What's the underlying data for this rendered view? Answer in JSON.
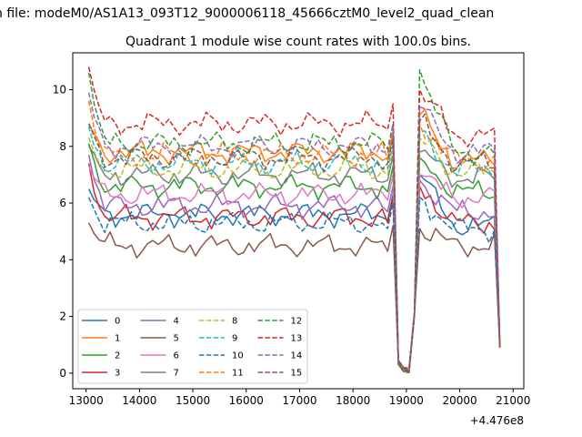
{
  "chart_data": {
    "type": "line",
    "suptitle": "n file: modeM0/AS1A13_093T12_9000006118_45666cztM0_level2_quad_clean",
    "title": "Quadrant 1 module wise count rates with 100.0s bins.",
    "xlabel": "",
    "ylabel": "",
    "x_offset_label": "+4.476e8",
    "xlim": [
      12750,
      21200
    ],
    "ylim": [
      -0.55,
      11.3
    ],
    "x_ticks": [
      13000,
      14000,
      15000,
      16000,
      17000,
      18000,
      19000,
      20000,
      21000
    ],
    "x_tick_labels": [
      "13000",
      "14000",
      "15000",
      "16000",
      "17000",
      "18000",
      "19000",
      "20000",
      "21000"
    ],
    "y_ticks": [
      0,
      2,
      4,
      6,
      8,
      10
    ],
    "y_tick_labels": [
      "0",
      "2",
      "4",
      "6",
      "8",
      "10"
    ],
    "legend_location": "lower-left",
    "legend_columns": 4,
    "grid": false,
    "series": [
      {
        "name": "0",
        "color": "#1f77b4",
        "dash": "solid",
        "base": 5.6,
        "start": 6.5,
        "peak": 7.0,
        "end": 5.2
      },
      {
        "name": "1",
        "color": "#ff7f0e",
        "dash": "solid",
        "base": 7.8,
        "start": 8.8,
        "peak": 9.1,
        "end": 7.5
      },
      {
        "name": "2",
        "color": "#2ca02c",
        "dash": "solid",
        "base": 6.6,
        "start": 8.1,
        "peak": 7.6,
        "end": 6.4
      },
      {
        "name": "3",
        "color": "#d62728",
        "dash": "solid",
        "base": 5.5,
        "start": 7.4,
        "peak": 6.6,
        "end": 5.3
      },
      {
        "name": "4",
        "color": "#9467bd",
        "dash": "solid",
        "base": 5.9,
        "start": 7.7,
        "peak": 6.8,
        "end": 5.7
      },
      {
        "name": "5",
        "color": "#8c564b",
        "dash": "solid",
        "base": 4.5,
        "start": 5.3,
        "peak": 5.1,
        "end": 4.5
      },
      {
        "name": "6",
        "color": "#e377c2",
        "dash": "solid",
        "base": 6.3,
        "start": 7.3,
        "peak": 7.0,
        "end": 6.2
      },
      {
        "name": "7",
        "color": "#7f7f7f",
        "dash": "solid",
        "base": 7.0,
        "start": 8.0,
        "peak": 7.8,
        "end": 6.9
      },
      {
        "name": "8",
        "color": "#bcbd22",
        "dash": "dashed",
        "base": 7.2,
        "start": 8.3,
        "peak": 8.3,
        "end": 7.1
      },
      {
        "name": "9",
        "color": "#17becf",
        "dash": "dashed",
        "base": 7.4,
        "start": 8.7,
        "peak": 8.5,
        "end": 7.2
      },
      {
        "name": "10",
        "color": "#1f77b4",
        "dash": "dashed",
        "base": 5.3,
        "start": 6.2,
        "peak": 6.2,
        "end": 5.1
      },
      {
        "name": "11",
        "color": "#ff7f0e",
        "dash": "dashed",
        "base": 7.7,
        "start": 9.6,
        "peak": 8.8,
        "end": 7.5
      },
      {
        "name": "12",
        "color": "#2ca02c",
        "dash": "dashed",
        "base": 8.1,
        "start": 10.6,
        "peak": 10.7,
        "end": 7.8
      },
      {
        "name": "13",
        "color": "#d62728",
        "dash": "dashed",
        "base": 8.8,
        "start": 10.8,
        "peak": 10.0,
        "end": 8.4
      },
      {
        "name": "14",
        "color": "#9467bd",
        "dash": "dashed",
        "base": 8.0,
        "start": 9.9,
        "peak": 9.4,
        "end": 7.8
      },
      {
        "name": "15",
        "color": "#8c564b",
        "dash": "dashed",
        "base": 7.6,
        "start": 8.8,
        "peak": 8.9,
        "end": 7.4
      }
    ],
    "profile": {
      "x_start": 13050,
      "x_step": 100,
      "segment1_end": 18750,
      "drop_points": [
        [
          18850,
          0.3
        ],
        [
          18950,
          0.05
        ],
        [
          19050,
          0.02
        ],
        [
          19150,
          2.0
        ]
      ],
      "segment2_start": 19250,
      "segment2_end": 20650,
      "tail_points": [
        [
          20750,
          0.9
        ]
      ]
    }
  }
}
